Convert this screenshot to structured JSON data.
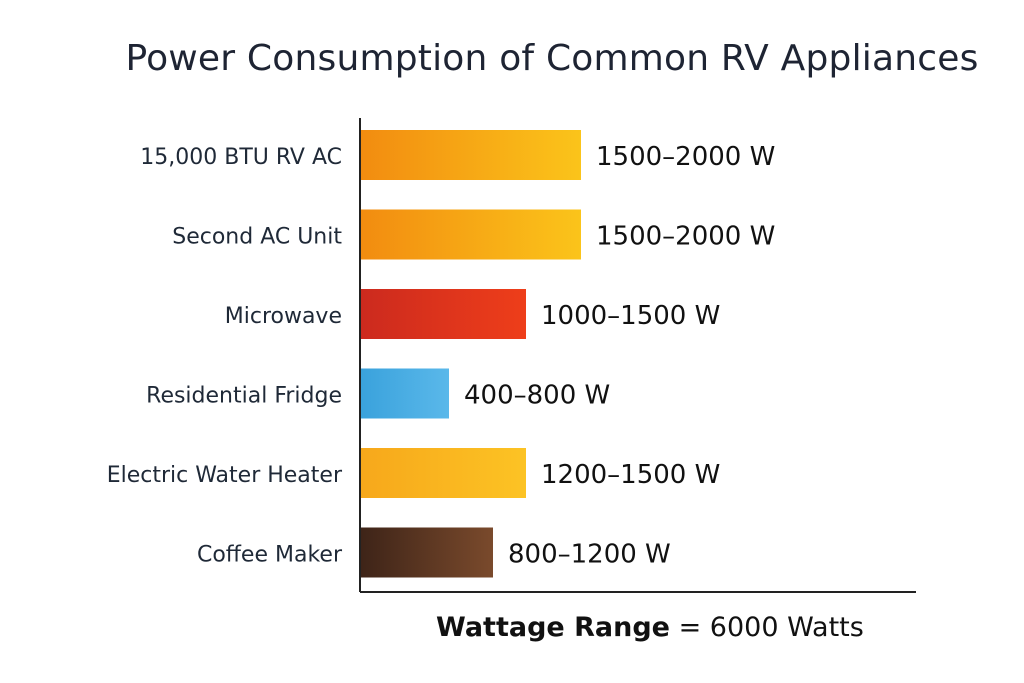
{
  "chart_data": {
    "type": "bar",
    "orientation": "horizontal",
    "title": "Power Consumption of Common RV Appliances",
    "xlabel": "Wattage Range",
    "xlabel_suffix": "= 6000 Watts",
    "categories": [
      "15,000 BTU RV AC",
      "Second AC Unit",
      "Microwave",
      "Residential Fridge",
      "Electric Water Heater",
      "Coffee Maker"
    ],
    "values": [
      2000,
      2000,
      1500,
      800,
      1500,
      1200
    ],
    "value_labels": [
      "1500–2000 W",
      "1500–2000 W",
      "1000–1500 W",
      "400–800 W",
      "1200–1500 W",
      "800–1200 W"
    ],
    "colors": [
      [
        "#f28c10",
        "#fbc41a"
      ],
      [
        "#f28c10",
        "#fbc41a"
      ],
      [
        "#cc2a1e",
        "#ee3e1a"
      ],
      [
        "#3aa2dc",
        "#5ab8ea"
      ],
      [
        "#f7a81b",
        "#fcc324"
      ],
      [
        "#3e2418",
        "#7a4a2c"
      ]
    ],
    "xlim": [
      0,
      6000
    ],
    "grid": false,
    "legend": "none"
  }
}
